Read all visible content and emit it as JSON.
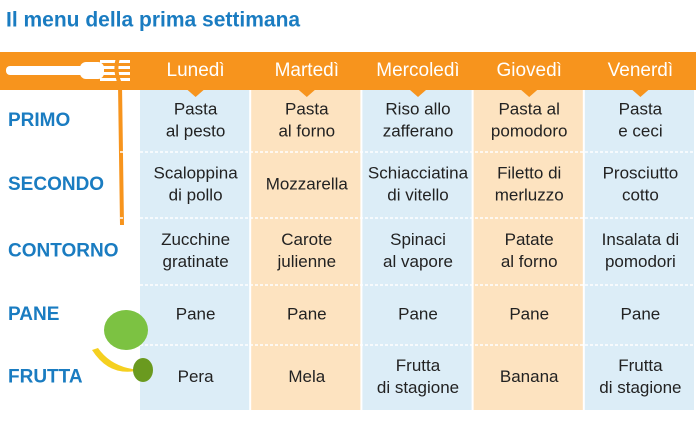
{
  "header": {
    "title": "Il menu della prima settimana"
  },
  "table": {
    "columns": [
      "Lunedì",
      "Martedì",
      "Mercoledì",
      "Giovedì",
      "Venerdì"
    ],
    "rows": [
      {
        "label": "PRIMO",
        "cells": [
          [
            "Pasta",
            "al pesto"
          ],
          [
            "Pasta",
            "al forno"
          ],
          [
            "Riso allo",
            "zafferano"
          ],
          [
            "Pasta al",
            "pomodoro"
          ],
          [
            "Pasta",
            "e ceci"
          ]
        ]
      },
      {
        "label": "SECONDO",
        "cells": [
          [
            "Scaloppina",
            "di pollo"
          ],
          [
            "Mozzarella"
          ],
          [
            "Schiacciatina",
            "di vitello"
          ],
          [
            "Filetto di",
            "merluzzo"
          ],
          [
            "Prosciutto",
            "cotto"
          ]
        ]
      },
      {
        "label": "CONTORNO",
        "cells": [
          [
            "Zucchine",
            "gratinate"
          ],
          [
            "Carote",
            "julienne"
          ],
          [
            "Spinaci",
            "al vapore"
          ],
          [
            "Patate",
            "al forno"
          ],
          [
            "Insalata di",
            "pomodori"
          ]
        ]
      },
      {
        "label": "PANE",
        "cells": [
          [
            "Pane"
          ],
          [
            "Pane"
          ],
          [
            "Pane"
          ],
          [
            "Pane"
          ],
          [
            "Pane"
          ]
        ]
      },
      {
        "label": "FRUTTA",
        "cells": [
          [
            "Pera"
          ],
          [
            "Mela"
          ],
          [
            "Frutta",
            "di stagione"
          ],
          [
            "Banana"
          ],
          [
            "Frutta",
            "di stagione"
          ]
        ]
      }
    ]
  }
}
